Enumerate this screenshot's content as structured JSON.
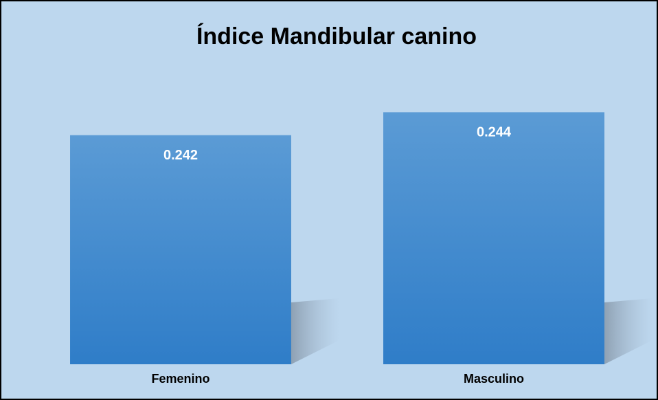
{
  "chart_data": {
    "type": "bar",
    "title": "Índice Mandibular canino",
    "categories": [
      "Femenino",
      "Masculino"
    ],
    "values": [
      0.242,
      0.244
    ],
    "color": "#4a8fd4",
    "ylim": [
      0.222,
      0.246
    ]
  }
}
